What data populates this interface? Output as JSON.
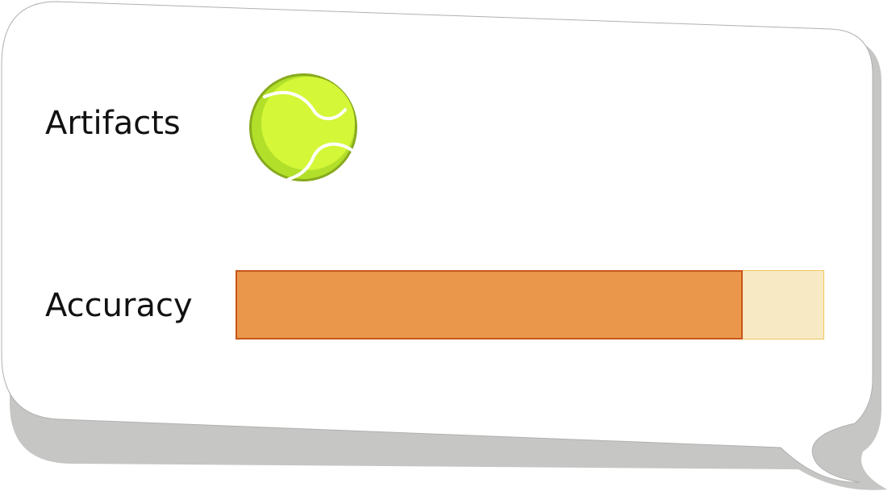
{
  "rows": {
    "artifacts": {
      "label": "Artifacts",
      "icon": "tennis-ball-icon"
    },
    "accuracy": {
      "label": "Accuracy",
      "value": 0.862
    }
  },
  "colors": {
    "bubble_fill": "#ffffff",
    "bubble_shadow": "#c6c6c4",
    "bubble_outline": "#b0b0b0",
    "bar_fill": "#ea974b",
    "bar_fill_border": "#c9561a",
    "bar_track": "#f8e9c5",
    "bar_track_border": "#f0c65c",
    "ball_main": "#d4f738",
    "ball_shade": "#b2e02a",
    "ball_outline": "#88aa1e",
    "ball_seam": "#ffffff"
  }
}
